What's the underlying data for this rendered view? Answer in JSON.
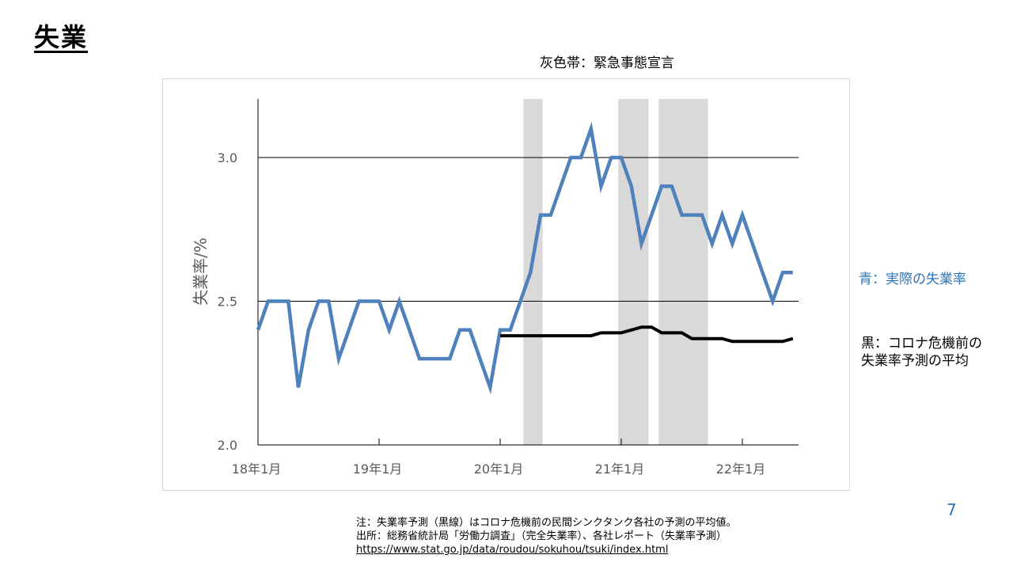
{
  "page": {
    "title": "失業",
    "band_label": "灰色帯：緊急事態宣言",
    "ylabel": "失業率/%",
    "legend_blue": "青：実際の失業率",
    "legend_black": "黒：コロナ危機前の\n失業率予測の平均",
    "page_number": "7",
    "note1": "注：失業率予測（黒線）はコロナ危機前の民間シンクタンク各社の予測の平均値。",
    "note2": "出所：総務省統計局「労働力調査」（完全失業率）、各社レポート（失業率予測）",
    "url": "https://www.stat.go.jp/data/roudou/sokuhou/tsuki/index.html"
  },
  "colors": {
    "actual": "#4f81bd",
    "forecast": "#000000",
    "band": "#d9d9d9",
    "grid": "#000000",
    "legend_blue_text": "#2e75b6"
  },
  "chart_data": {
    "type": "line",
    "xlabel": "",
    "ylabel": "失業率/%",
    "ylim": [
      2.0,
      3.2
    ],
    "yticks": [
      "2.0",
      "2.5",
      "3.0"
    ],
    "ytick_values": [
      2.0,
      2.5,
      3.0
    ],
    "xticks": [
      "18年1月",
      "19年1月",
      "20年1月",
      "21年1月",
      "22年1月"
    ],
    "xtick_positions_month_index": [
      0,
      12,
      24,
      36,
      48
    ],
    "x_unit": "month index from 18年1月",
    "grid": "horizontal",
    "shaded_periods": [
      {
        "label": "緊急事態宣言",
        "start_month_index": 26.3,
        "end_month_index": 28.2
      },
      {
        "label": "緊急事態宣言",
        "start_month_index": 35.7,
        "end_month_index": 38.7
      },
      {
        "label": "緊急事態宣言",
        "start_month_index": 39.7,
        "end_month_index": 44.6
      }
    ],
    "series": [
      {
        "name": "実際の失業率",
        "x": [
          0,
          1,
          2,
          3,
          4,
          5,
          6,
          7,
          8,
          9,
          10,
          11,
          12,
          13,
          14,
          15,
          16,
          17,
          18,
          19,
          20,
          21,
          22,
          23,
          24,
          25,
          26,
          27,
          28,
          29,
          30,
          31,
          32,
          33,
          34,
          35,
          36,
          37,
          38,
          39,
          40,
          41,
          42,
          43,
          44,
          45,
          46,
          47,
          48,
          49,
          50,
          51,
          52,
          53
        ],
        "values": [
          2.4,
          2.5,
          2.5,
          2.5,
          2.2,
          2.4,
          2.5,
          2.5,
          2.3,
          2.4,
          2.5,
          2.5,
          2.5,
          2.4,
          2.5,
          2.4,
          2.3,
          2.3,
          2.3,
          2.3,
          2.4,
          2.4,
          2.3,
          2.2,
          2.4,
          2.4,
          2.5,
          2.6,
          2.8,
          2.8,
          2.9,
          3.0,
          3.0,
          3.1,
          2.9,
          3.0,
          3.0,
          2.9,
          2.7,
          2.8,
          2.9,
          2.9,
          2.8,
          2.8,
          2.8,
          2.7,
          2.8,
          2.7,
          2.8,
          2.7,
          2.6,
          2.5,
          2.6,
          2.6
        ]
      },
      {
        "name": "コロナ危機前の失業率予測の平均",
        "x": [
          24,
          25,
          26,
          27,
          28,
          29,
          30,
          31,
          32,
          33,
          34,
          35,
          36,
          37,
          38,
          39,
          40,
          41,
          42,
          43,
          44,
          45,
          46,
          47,
          48,
          49,
          50,
          51,
          52,
          53
        ],
        "values": [
          2.38,
          2.38,
          2.38,
          2.38,
          2.38,
          2.38,
          2.38,
          2.38,
          2.38,
          2.38,
          2.39,
          2.39,
          2.39,
          2.4,
          2.41,
          2.41,
          2.39,
          2.39,
          2.39,
          2.37,
          2.37,
          2.37,
          2.37,
          2.36,
          2.36,
          2.36,
          2.36,
          2.36,
          2.36,
          2.37
        ]
      }
    ]
  }
}
